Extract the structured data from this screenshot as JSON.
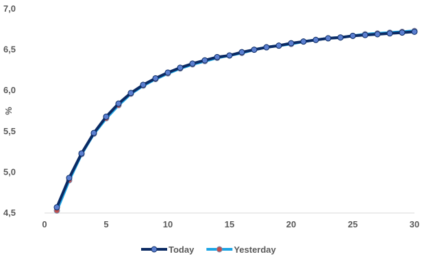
{
  "chart_data": {
    "type": "line",
    "title": "",
    "xlabel": "",
    "ylabel": "%",
    "xlim": [
      0,
      30
    ],
    "ylim": [
      4.5,
      7.0
    ],
    "x_ticks": [
      "0",
      "5",
      "10",
      "15",
      "20",
      "25",
      "30"
    ],
    "y_ticks": [
      "4,5",
      "5,0",
      "5,5",
      "6,0",
      "6,5",
      "7,0"
    ],
    "grid": false,
    "legend_position": "bottom",
    "x": [
      1,
      2,
      3,
      4,
      5,
      6,
      7,
      8,
      9,
      10,
      11,
      12,
      13,
      14,
      15,
      16,
      17,
      18,
      19,
      20,
      21,
      22,
      23,
      24,
      25,
      26,
      27,
      28,
      29,
      30
    ],
    "series": [
      {
        "name": "Today",
        "line_color": "#0b2a63",
        "marker_fill": "#5b7fd0",
        "marker_edge": "#0b2a63",
        "values": [
          4.57,
          4.93,
          5.23,
          5.48,
          5.68,
          5.84,
          5.97,
          6.07,
          6.15,
          6.22,
          6.28,
          6.33,
          6.37,
          6.41,
          6.43,
          6.47,
          6.5,
          6.53,
          6.55,
          6.58,
          6.6,
          6.62,
          6.64,
          6.65,
          6.67,
          6.68,
          6.69,
          6.7,
          6.71,
          6.72
        ]
      },
      {
        "name": "Yesterday",
        "line_color": "#1ca4e4",
        "marker_fill": "#c0504d",
        "marker_edge": "#7a8fb0",
        "values": [
          4.53,
          4.9,
          5.22,
          5.47,
          5.66,
          5.82,
          5.96,
          6.06,
          6.14,
          6.21,
          6.27,
          6.32,
          6.36,
          6.4,
          6.43,
          6.46,
          6.5,
          6.53,
          6.55,
          6.57,
          6.6,
          6.62,
          6.64,
          6.65,
          6.67,
          6.69,
          6.7,
          6.71,
          6.72,
          6.73
        ]
      }
    ]
  }
}
